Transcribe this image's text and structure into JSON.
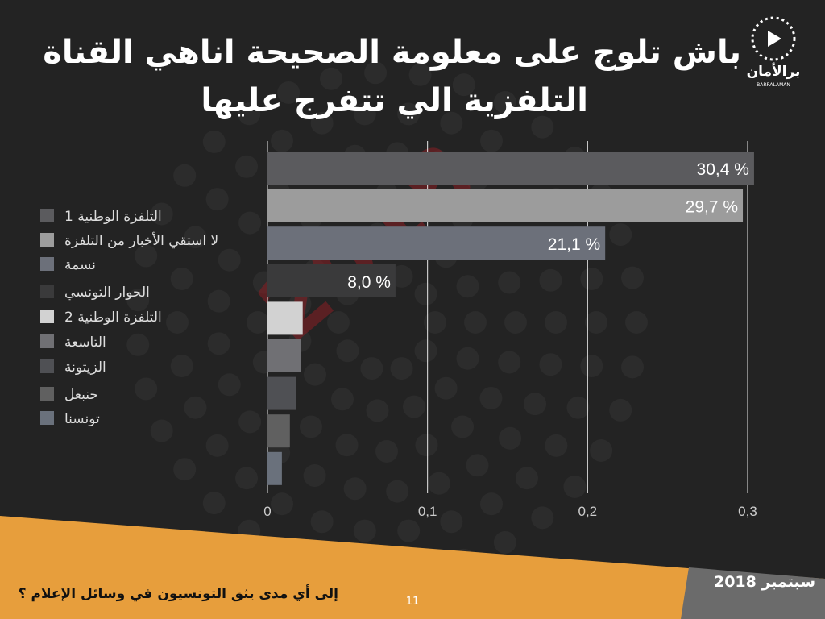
{
  "header": {
    "title_lines": [
      "باش تلوج على معلومة الصحيحة اناهي القناة",
      "التلفزية الي تتفرج عليها"
    ],
    "logo_text": "برالأمان",
    "logo_subtext": "BARRALAMAN"
  },
  "watermark": "2018",
  "chart_data": {
    "type": "bar",
    "orientation": "horizontal",
    "categories": [
      "التلفزة الوطنية 1",
      "لا استقي الأخبار من التلفزة",
      "نسمة",
      "الحوار التونسي",
      "التلفزة الوطنية 2",
      "التاسعة",
      "الزيتونة",
      "حنبعل",
      "تونسنا"
    ],
    "values": [
      0.304,
      0.297,
      0.211,
      0.08,
      0.022,
      0.021,
      0.018,
      0.014,
      0.009
    ],
    "value_labels": [
      "30,4 %",
      "29,7 %",
      "21,1 %",
      "8,0 %",
      null,
      null,
      null,
      null,
      null
    ],
    "colors": [
      "#5b5b5e",
      "#9c9c9c",
      "#6c707a",
      "#3a3a3b",
      "#d2d2d2",
      "#707074",
      "#4f5054",
      "#606060",
      "#6a717c"
    ],
    "xlim": [
      0,
      0.3
    ],
    "xticks": [
      0,
      {
        "value": 0.1,
        "label": "0,1"
      },
      {
        "value": 0.2,
        "label": "0,2"
      },
      {
        "value": 0.3,
        "label": "0,3"
      }
    ],
    "grid": true,
    "legend": "left"
  },
  "footer": {
    "question": "إلى أي مدى يثق التونسيون في وسائل الإعلام ؟",
    "date": "سبتمبر 2018",
    "page": "11"
  }
}
